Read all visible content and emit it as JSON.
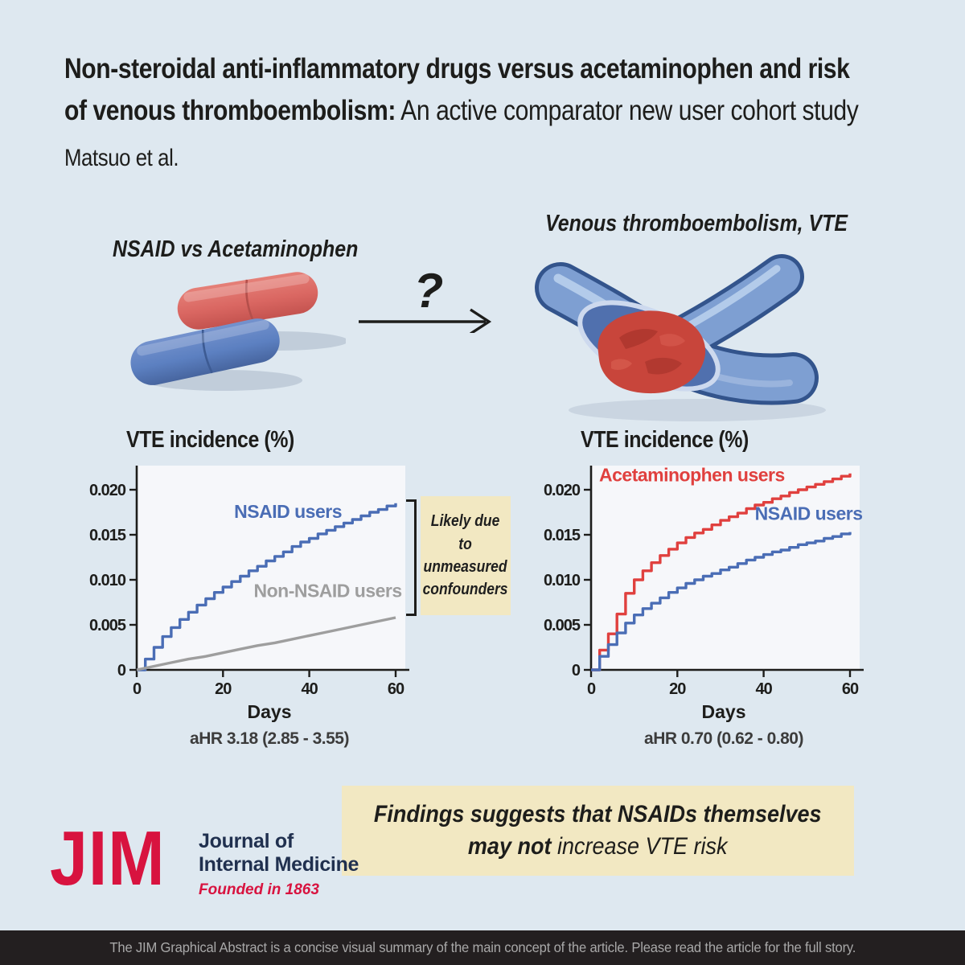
{
  "header": {
    "title_line1": "Non-steroidal anti-inflammatory drugs versus acetaminophen and risk",
    "title_line2_bold": "of venous thromboembolism:",
    "title_line2_regular": " An active comparator new user cohort study",
    "authors": "Matsuo et al."
  },
  "comparison": {
    "drugs_label": "NSAID vs Acetaminophen",
    "question_mark": "?",
    "outcome_label": "Venous thromboembolism, VTE"
  },
  "annotation": {
    "text": "Likely due to unmeasured confounders"
  },
  "conclusion": {
    "line1": "Findings suggests that NSAIDs themselves",
    "line2_bold": "may not",
    "line2_regular": " increase VTE risk"
  },
  "logo": {
    "abbr": "JIM",
    "name_line1": "Journal of",
    "name_line2": "Internal Medicine",
    "tagline": "Founded in 1863"
  },
  "footer": {
    "text": "The JIM Graphical Abstract is a concise visual summary of the main concept of the article. Please read the article for the full story."
  },
  "colors": {
    "background": "#dee8f0",
    "text_dark": "#1d1d1b",
    "nsaid_blue": "#4a6db5",
    "acetaminophen_red": "#e0403e",
    "non_nsaid_gray": "#9e9e9e",
    "highlight_yellow": "#f2e8c2",
    "plot_background": "#f6f7fa",
    "jim_red": "#d8133f",
    "journal_navy": "#20304f",
    "footer_bg": "#231f20"
  },
  "chart_data": [
    {
      "type": "line",
      "title": "VTE incidence (%)",
      "xlabel": "Days",
      "ylabel": "VTE incidence (%)",
      "caption": "aHR 3.18 (2.85 - 3.55)",
      "xlim": [
        0,
        61.5
      ],
      "ylim": [
        0,
        0.0225
      ],
      "xticks": [
        0,
        20,
        40,
        60
      ],
      "ytick_values": [
        0,
        0.005,
        0.01,
        0.015,
        0.02
      ],
      "ytick_labels": [
        "0",
        "0.005",
        "0.010",
        "0.015",
        "0.020"
      ],
      "grid": false,
      "series": [
        {
          "name": "NSAID users",
          "color": "#4a6db5",
          "style": "step",
          "label_anchor": [
            0.57,
            0.25
          ],
          "x": [
            0,
            2,
            4,
            6,
            8,
            10,
            12,
            14,
            16,
            18,
            20,
            22,
            24,
            26,
            28,
            30,
            32,
            34,
            36,
            38,
            40,
            42,
            44,
            46,
            48,
            50,
            52,
            54,
            56,
            58,
            60
          ],
          "y": [
            0,
            0.0012,
            0.0025,
            0.0037,
            0.0047,
            0.0056,
            0.0064,
            0.0072,
            0.0079,
            0.0086,
            0.0092,
            0.0098,
            0.0104,
            0.011,
            0.0115,
            0.0121,
            0.0126,
            0.0131,
            0.0137,
            0.0142,
            0.0146,
            0.0151,
            0.0155,
            0.0159,
            0.0163,
            0.0167,
            0.0171,
            0.0175,
            0.0178,
            0.0182,
            0.0185
          ]
        },
        {
          "name": "Non-NSAID users",
          "color": "#9e9e9e",
          "style": "line",
          "label_anchor": [
            0.72,
            0.64
          ],
          "x": [
            0,
            4,
            8,
            12,
            16,
            20,
            24,
            28,
            32,
            36,
            40,
            44,
            48,
            52,
            56,
            60
          ],
          "y": [
            0,
            0.0004,
            0.0008,
            0.0012,
            0.0015,
            0.0019,
            0.0023,
            0.0027,
            0.003,
            0.0034,
            0.0038,
            0.0042,
            0.0046,
            0.005,
            0.0054,
            0.0058
          ]
        }
      ]
    },
    {
      "type": "line",
      "title": "VTE incidence (%)",
      "xlabel": "Days",
      "ylabel": "VTE incidence (%)",
      "caption": "aHR 0.70 (0.62 - 0.80)",
      "xlim": [
        0,
        61.5
      ],
      "ylim": [
        0,
        0.0225
      ],
      "xticks": [
        0,
        20,
        40,
        60
      ],
      "ytick_values": [
        0,
        0.005,
        0.01,
        0.015,
        0.02
      ],
      "ytick_labels": [
        "0",
        "0.005",
        "0.010",
        "0.015",
        "0.020"
      ],
      "grid": false,
      "series": [
        {
          "name": "Acetaminophen users",
          "color": "#e0403e",
          "style": "step",
          "label_anchor": [
            0.38,
            0.07
          ],
          "x": [
            0,
            2,
            4,
            6,
            8,
            10,
            12,
            14,
            16,
            18,
            20,
            22,
            24,
            26,
            28,
            30,
            32,
            34,
            36,
            38,
            40,
            42,
            44,
            46,
            48,
            50,
            52,
            54,
            56,
            58,
            60
          ],
          "y": [
            0,
            0.0022,
            0.004,
            0.0062,
            0.0085,
            0.01,
            0.011,
            0.0119,
            0.0127,
            0.0134,
            0.0141,
            0.0147,
            0.0152,
            0.0156,
            0.0161,
            0.0166,
            0.017,
            0.0174,
            0.0179,
            0.0183,
            0.0186,
            0.019,
            0.0193,
            0.0197,
            0.02,
            0.0203,
            0.0206,
            0.0209,
            0.0212,
            0.0215,
            0.0218
          ]
        },
        {
          "name": "NSAID users",
          "color": "#4a6db5",
          "style": "step",
          "label_anchor": [
            0.82,
            0.26
          ],
          "x": [
            0,
            2,
            4,
            6,
            8,
            10,
            12,
            14,
            16,
            18,
            20,
            22,
            24,
            26,
            28,
            30,
            32,
            34,
            36,
            38,
            40,
            42,
            44,
            46,
            48,
            50,
            52,
            54,
            56,
            58,
            60
          ],
          "y": [
            0,
            0.0015,
            0.0028,
            0.0041,
            0.0052,
            0.0061,
            0.0068,
            0.0074,
            0.008,
            0.0086,
            0.0091,
            0.0096,
            0.01,
            0.0104,
            0.0107,
            0.0111,
            0.0114,
            0.0118,
            0.0122,
            0.0125,
            0.0128,
            0.0131,
            0.0133,
            0.0136,
            0.0139,
            0.0141,
            0.0143,
            0.0146,
            0.0148,
            0.0151,
            0.0153
          ]
        }
      ]
    }
  ]
}
